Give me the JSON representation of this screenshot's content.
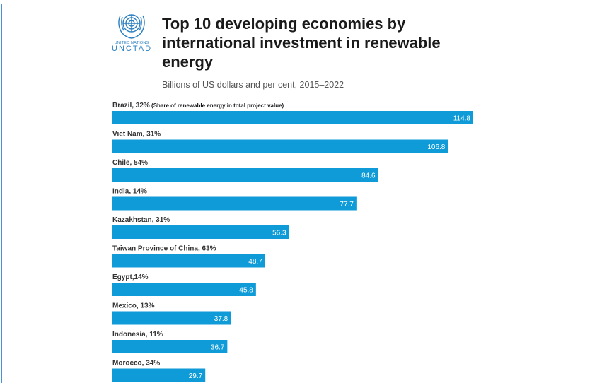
{
  "header": {
    "logo_line1": "UNITED NATIONS",
    "logo_line2": "UNCTAD",
    "title": "Top 10 developing economies by international investment in renewable energy",
    "subtitle": "Billions of US dollars and per cent, 2015–2022"
  },
  "chart_data": {
    "type": "bar",
    "orientation": "horizontal",
    "categories": [
      "Brazil, 32%",
      "Viet Nam, 31%",
      "Chile, 54%",
      "India, 14%",
      "Kazakhstan, 31%",
      "Taiwan Province of China, 63%",
      "Egypt,14%",
      "Mexico, 13%",
      "Indonesia, 11%",
      "Morocco, 34%"
    ],
    "values": [
      114.8,
      106.8,
      84.6,
      77.7,
      56.3,
      48.7,
      45.8,
      37.8,
      36.7,
      29.7
    ],
    "value_labels": [
      "114.8",
      "106.8",
      "84.6",
      "77.7",
      "56.3",
      "48.7",
      "45.8",
      "37.8",
      "36.7",
      "29.7"
    ],
    "first_label_note": "(Share of renewable energy in total project value)",
    "title": "Top 10 developing economies by international investment in renewable energy",
    "subtitle": "Billions of US dollars and per cent, 2015–2022",
    "xlabel": "",
    "ylabel": "",
    "bar_color": "#0f9bd7",
    "grid": false,
    "legend": "none"
  }
}
